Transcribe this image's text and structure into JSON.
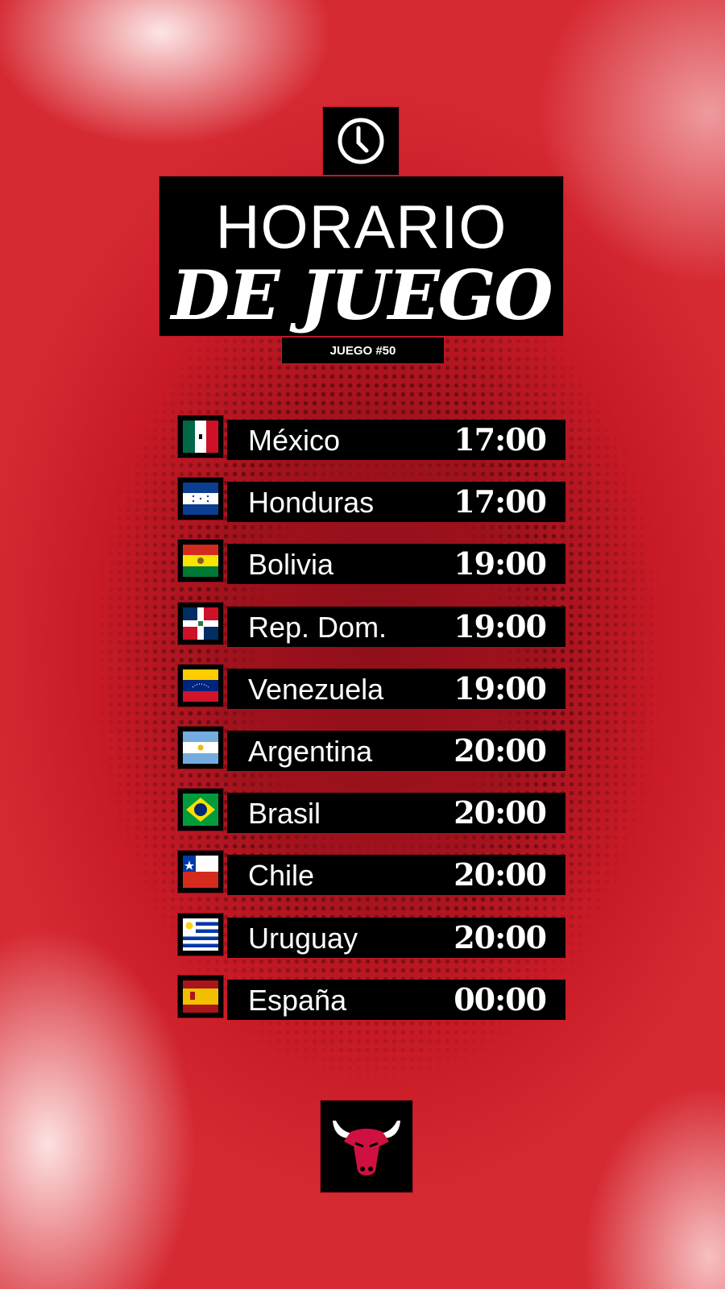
{
  "header": {
    "icon": "clock-icon",
    "title_line1": "HORARIO",
    "title_line2": "DE JUEGO",
    "game_label": "JUEGO #50"
  },
  "schedule": [
    {
      "country": "México",
      "time": "17:00",
      "flag": "mexico-flag-icon"
    },
    {
      "country": "Honduras",
      "time": "17:00",
      "flag": "honduras-flag-icon"
    },
    {
      "country": "Bolivia",
      "time": "19:00",
      "flag": "bolivia-flag-icon"
    },
    {
      "country": "Rep. Dom.",
      "time": "19:00",
      "flag": "dominican-republic-flag-icon"
    },
    {
      "country": "Venezuela",
      "time": "19:00",
      "flag": "venezuela-flag-icon"
    },
    {
      "country": "Argentina",
      "time": "20:00",
      "flag": "argentina-flag-icon"
    },
    {
      "country": "Brasil",
      "time": "20:00",
      "flag": "brazil-flag-icon"
    },
    {
      "country": "Chile",
      "time": "20:00",
      "flag": "chile-flag-icon"
    },
    {
      "country": "Uruguay",
      "time": "20:00",
      "flag": "uruguay-flag-icon"
    },
    {
      "country": "España",
      "time": "00:00",
      "flag": "spain-flag-icon"
    }
  ],
  "footer": {
    "logo": "chicago-bulls-logo"
  },
  "colors": {
    "accent": "#c0182a",
    "background_red": "#a1121d",
    "box": "#000000",
    "text": "#ffffff"
  }
}
